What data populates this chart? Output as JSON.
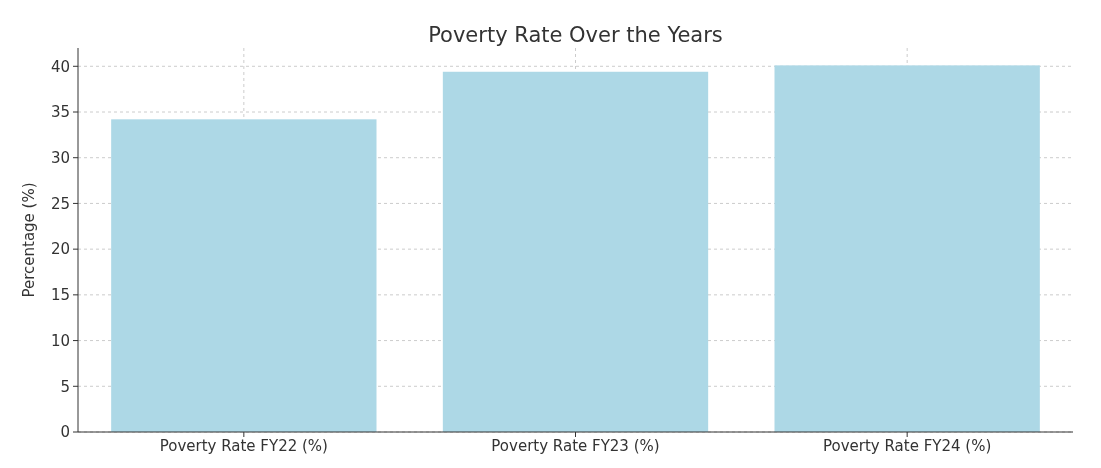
{
  "chart_data": {
    "type": "bar",
    "title": "Poverty Rate Over the Years",
    "ylabel": "Percentage (%)",
    "categories": [
      "Poverty Rate FY22 (%)",
      "Poverty Rate FY23 (%)",
      "Poverty Rate FY24 (%)"
    ],
    "values": [
      34.2,
      39.4,
      40.1
    ],
    "color": "#add8e6",
    "ylim": [
      0,
      42
    ],
    "yticks": [
      0,
      5,
      10,
      15,
      20,
      25,
      30,
      35,
      40
    ],
    "grid": true
  }
}
